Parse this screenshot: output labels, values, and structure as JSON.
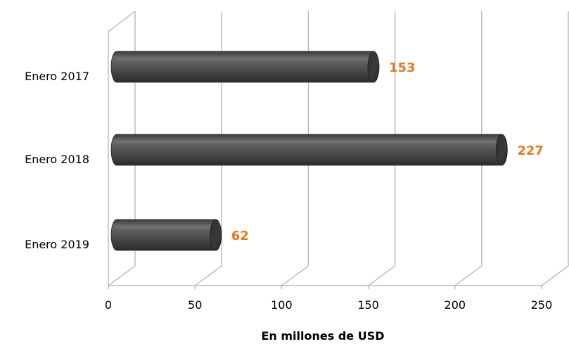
{
  "chart_data": {
    "type": "bar",
    "orientation": "horizontal",
    "style": "3d-cylinder",
    "categories": [
      "Enero 2017",
      "Enero 2018",
      "Enero 2019"
    ],
    "values": [
      153,
      227,
      62
    ],
    "title": "",
    "xlabel": "En millones de USD",
    "ylabel": "",
    "xlim": [
      0,
      250
    ],
    "xticks": [
      0,
      50,
      100,
      150,
      200,
      250
    ],
    "grid": true,
    "legend": "none",
    "colors": {
      "bar": "#4a4a4a",
      "bar_highlight": "#8a8a8a",
      "value_label": "#e07b22",
      "grid": "#b3b3b3",
      "text": "#000000"
    }
  }
}
